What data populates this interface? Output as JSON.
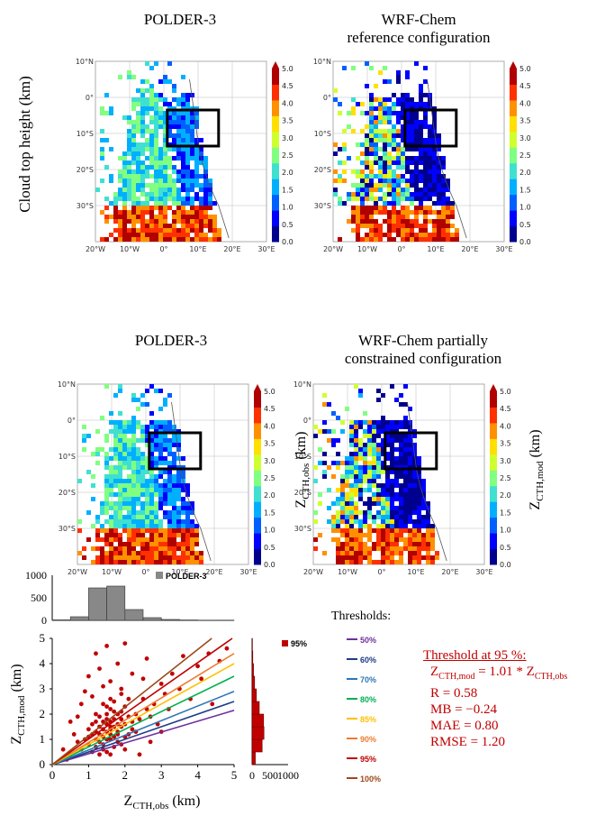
{
  "figure": {
    "row_label": "Cloud top height (km)",
    "panels": [
      {
        "id": "a",
        "title_lines": [
          "POLDER-3"
        ]
      },
      {
        "id": "b",
        "title_lines": [
          "WRF-Chem",
          "reference configuration"
        ]
      },
      {
        "id": "c",
        "title_lines": [
          "POLDER-3"
        ],
        "colorbar_label": "Z",
        "colorbar_sub": "CTH,obs",
        "colorbar_unit": " (km)"
      },
      {
        "id": "d",
        "title_lines": [
          "WRF-Chem partially",
          "constrained configuration"
        ],
        "colorbar_label": "Z",
        "colorbar_sub": "CTH,mod",
        "colorbar_unit": " (km)"
      }
    ],
    "map_lon_ticks": [
      "20°W",
      "10°W",
      "0°",
      "10°E",
      "20°E",
      "30°E"
    ],
    "map_lat_ticks": [
      "10°N",
      "0°",
      "10°S",
      "20°S",
      "30°S"
    ],
    "colorbar_ticks": [
      "5.0",
      "4.5",
      "4.0",
      "3.5",
      "3.0",
      "2.5",
      "2.0",
      "1.5",
      "1.0",
      "0.5",
      "0.0"
    ],
    "colorbar_colors": [
      "#00008f",
      "#0000ff",
      "#0060ff",
      "#00b0ff",
      "#40e0d0",
      "#80ff80",
      "#d0ff30",
      "#ffe000",
      "#ff9000",
      "#ff3000",
      "#b00000"
    ]
  },
  "chart_data": [
    {
      "type": "scatter",
      "xlabel": "Z",
      "xlabel_sub": "CTH,obs",
      "xlabel_unit": " (km)",
      "ylabel": "Z",
      "ylabel_sub": "CTH,mod",
      "ylabel_unit": " (km)",
      "xlim": [
        0,
        5
      ],
      "ylim": [
        0,
        5
      ],
      "xticks": [
        0,
        1,
        2,
        3,
        4,
        5
      ],
      "yticks": [
        0,
        1,
        2,
        3,
        4,
        5
      ],
      "grid": false,
      "point_color": "#c00000",
      "points": [
        [
          1.2,
          1.3
        ],
        [
          1.4,
          1.1
        ],
        [
          1.5,
          1.6
        ],
        [
          1.6,
          1.4
        ],
        [
          1.7,
          1.8
        ],
        [
          1.3,
          0.9
        ],
        [
          1.8,
          1.2
        ],
        [
          1.5,
          2.0
        ],
        [
          1.6,
          1.0
        ],
        [
          1.9,
          1.5
        ],
        [
          1.1,
          1.2
        ],
        [
          1.4,
          1.7
        ],
        [
          1.7,
          1.1
        ],
        [
          2.0,
          1.6
        ],
        [
          1.2,
          0.7
        ],
        [
          1.5,
          1.3
        ],
        [
          1.6,
          2.2
        ],
        [
          1.8,
          0.9
        ],
        [
          1.3,
          1.5
        ],
        [
          2.1,
          1.9
        ],
        [
          1.0,
          0.8
        ],
        [
          1.4,
          0.6
        ],
        [
          1.7,
          2.5
        ],
        [
          1.9,
          2.1
        ],
        [
          2.2,
          1.4
        ],
        [
          1.5,
          0.5
        ],
        [
          1.6,
          1.7
        ],
        [
          1.2,
          2.0
        ],
        [
          1.8,
          1.6
        ],
        [
          2.0,
          1.1
        ],
        [
          0.9,
          1.0
        ],
        [
          1.3,
          1.9
        ],
        [
          1.6,
          0.4
        ],
        [
          2.3,
          2.0
        ],
        [
          1.4,
          2.4
        ],
        [
          1.7,
          0.7
        ],
        [
          1.9,
          2.8
        ],
        [
          1.1,
          1.6
        ],
        [
          2.1,
          1.2
        ],
        [
          1.5,
          1.8
        ],
        [
          0.8,
          0.6
        ],
        [
          1.0,
          1.4
        ],
        [
          1.2,
          1.0
        ],
        [
          1.6,
          1.2
        ],
        [
          1.8,
          2.0
        ],
        [
          2.0,
          2.3
        ],
        [
          2.2,
          1.7
        ],
        [
          1.3,
          0.4
        ],
        [
          1.7,
          1.5
        ],
        [
          1.9,
          0.8
        ],
        [
          2.4,
          1.8
        ],
        [
          1.4,
          1.4
        ],
        [
          1.6,
          2.6
        ],
        [
          1.1,
          0.5
        ],
        [
          2.5,
          2.6
        ],
        [
          1.5,
          1.0
        ],
        [
          1.8,
          1.3
        ],
        [
          2.0,
          0.6
        ],
        [
          1.3,
          1.2
        ],
        [
          1.7,
          2.1
        ],
        [
          0.7,
          0.9
        ],
        [
          1.2,
          1.7
        ],
        [
          2.6,
          2.2
        ],
        [
          1.9,
          1.8
        ],
        [
          1.4,
          0.8
        ],
        [
          2.3,
          1.3
        ],
        [
          1.6,
          1.5
        ],
        [
          1.0,
          1.1
        ],
        [
          2.1,
          2.6
        ],
        [
          1.5,
          2.3
        ],
        [
          0.6,
          1.2
        ],
        [
          0.5,
          0.4
        ],
        [
          2.7,
          1.9
        ],
        [
          2.8,
          2.4
        ],
        [
          3.0,
          3.2
        ],
        [
          2.9,
          1.6
        ],
        [
          3.1,
          2.8
        ],
        [
          2.5,
          3.4
        ],
        [
          0.9,
          2.9
        ],
        [
          1.0,
          3.5
        ],
        [
          1.3,
          3.8
        ],
        [
          1.6,
          3.3
        ],
        [
          1.8,
          4.0
        ],
        [
          1.2,
          4.4
        ],
        [
          1.5,
          4.7
        ],
        [
          0.8,
          2.4
        ],
        [
          1.1,
          2.7
        ],
        [
          2.2,
          3.6
        ],
        [
          2.6,
          4.2
        ],
        [
          3.2,
          2.2
        ],
        [
          3.5,
          3.0
        ],
        [
          3.8,
          2.6
        ],
        [
          4.1,
          3.4
        ],
        [
          4.4,
          2.4
        ],
        [
          4.6,
          4.1
        ],
        [
          4.8,
          4.6
        ],
        [
          3.6,
          4.3
        ],
        [
          3.0,
          1.3
        ],
        [
          2.7,
          0.9
        ],
        [
          0.4,
          0.2
        ],
        [
          0.3,
          0.6
        ],
        [
          0.5,
          1.7
        ],
        [
          0.7,
          1.9
        ],
        [
          1.9,
          3.0
        ],
        [
          2.4,
          0.4
        ],
        [
          3.3,
          3.6
        ],
        [
          4.0,
          3.9
        ],
        [
          4.3,
          4.4
        ],
        [
          2.0,
          4.8
        ],
        [
          1.4,
          3.1
        ]
      ],
      "marginal_top": {
        "label": "POLDER-3",
        "ylim": [
          0,
          1000
        ],
        "yticks": [
          0,
          500,
          1000
        ],
        "bins": [
          0.25,
          0.75,
          1.25,
          1.75,
          2.25,
          2.75,
          3.25,
          3.75,
          4.25,
          4.75
        ],
        "counts": [
          10,
          80,
          720,
          760,
          240,
          60,
          20,
          8,
          4,
          2
        ]
      },
      "marginal_right": {
        "label": "95%",
        "xlim": [
          0,
          1000
        ],
        "xticks": [
          0,
          500,
          1000
        ],
        "bins": [
          0.25,
          0.75,
          1.25,
          1.75,
          2.25,
          2.75,
          3.25,
          3.75,
          4.25,
          4.75
        ],
        "counts": [
          90,
          280,
          330,
          320,
          200,
          120,
          70,
          40,
          20,
          10
        ]
      },
      "thresholds_title": "Thresholds:",
      "series": [
        {
          "name": "50%",
          "color": "#7030a0",
          "slope": 0.43
        },
        {
          "name": "60%",
          "color": "#1f3c88",
          "slope": 0.5
        },
        {
          "name": "70%",
          "color": "#2e75b6",
          "slope": 0.58
        },
        {
          "name": "80%",
          "color": "#00b050",
          "slope": 0.7
        },
        {
          "name": "85%",
          "color": "#ffc000",
          "slope": 0.8
        },
        {
          "name": "90%",
          "color": "#ed7d31",
          "slope": 0.88
        },
        {
          "name": "95%",
          "color": "#c00000",
          "slope": 1.01
        },
        {
          "name": "100%",
          "color": "#9c4a1a",
          "slope": 1.14
        }
      ]
    }
  ],
  "stats": {
    "heading": "Threshold at 95 %:",
    "eq_lhs": "Z",
    "eq_lhs_sub": "CTH,mod",
    "eq_mid": " = 1.01 * Z",
    "eq_rhs_sub": "CTH,obs",
    "lines": [
      "R = 0.58",
      "MB = −0.24",
      "MAE = 0.80",
      "RMSE = 1.20"
    ]
  }
}
